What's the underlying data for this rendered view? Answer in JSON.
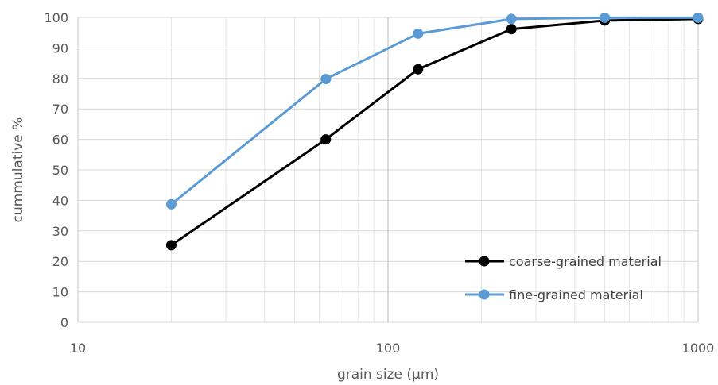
{
  "chart_data": {
    "type": "line",
    "title": "",
    "xlabel": "grain size (µm)",
    "ylabel": "cummulative %",
    "xscale": "log",
    "xlim": [
      10,
      1000
    ],
    "ylim": [
      0,
      100
    ],
    "x_ticks": [
      "10",
      "100",
      "1000"
    ],
    "y_ticks": [
      "0",
      "10",
      "20",
      "30",
      "40",
      "50",
      "60",
      "70",
      "80",
      "90",
      "100"
    ],
    "grid": true,
    "legend_position": "bottom-right",
    "series": [
      {
        "name": "coarse-grained material",
        "color": "#000000",
        "x": [
          20,
          63,
          125,
          250,
          500,
          1000
        ],
        "y": [
          25.3,
          60,
          83,
          96.2,
          99,
          99.5
        ]
      },
      {
        "name": "fine-grained material",
        "color": "#5b9bd5",
        "x": [
          20,
          63,
          125,
          250,
          500,
          1000
        ],
        "y": [
          38.7,
          79.8,
          94.7,
          99.5,
          99.9,
          99.9
        ]
      }
    ]
  }
}
